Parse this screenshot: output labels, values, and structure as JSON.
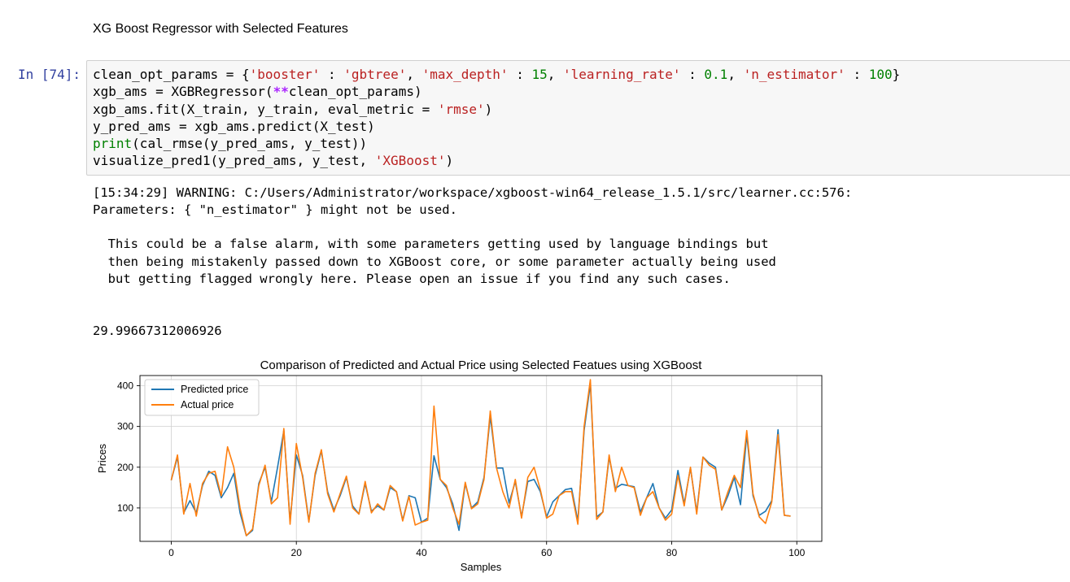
{
  "markdown": {
    "heading": "XG Boost Regressor with Selected Features"
  },
  "cell": {
    "prompt": "In [74]:",
    "code": {
      "l1_var": "clean_opt_params = {",
      "l1_k1": "'booster'",
      "l1_sep1": " : ",
      "l1_v1": "'gbtree'",
      "l1_c1": ", ",
      "l1_k2": "'max_depth'",
      "l1_sep2": " : ",
      "l1_v2": "15",
      "l1_c2": ", ",
      "l1_k3": "'learning_rate'",
      "l1_sep3": " : ",
      "l1_v3": "0.1",
      "l1_c3": ", ",
      "l1_k4": "'n_estimator'",
      "l1_sep4": " : ",
      "l1_v4": "100",
      "l1_end": "}",
      "l2_a": "xgb_ams = XGBRegressor(",
      "l2_op": "**",
      "l2_b": "clean_opt_params)",
      "l3_a": "xgb_ams.fit(X_train, y_train, eval_metric = ",
      "l3_s": "'rmse'",
      "l3_b": ")",
      "l4": "y_pred_ams = xgb_ams.predict(X_test)",
      "l5_fn": "print",
      "l5_b": "(cal_rmse(y_pred_ams, y_test))",
      "l6_a": "visualize_pred1(y_pred_ams, y_test, ",
      "l6_s": "'XGBoost'",
      "l6_b": ")"
    }
  },
  "output": {
    "warn1": "[15:34:29] WARNING: C:/Users/Administrator/workspace/xgboost-win64_release_1.5.1/src/learner.cc:576:",
    "warn2": "Parameters: { \"n_estimator\" } might not be used.",
    "warn3": "  This could be a false alarm, with some parameters getting used by language bindings but",
    "warn4": "  then being mistakenly passed down to XGBoost core, or some parameter actually being used",
    "warn5": "  but getting flagged wrongly here. Please open an issue if you find any such cases.",
    "rmse": "29.99667312006926"
  },
  "chart_data": {
    "type": "line",
    "title": "Comparison of Predicted and Actual Price using Selected Featues using XGBoost",
    "xlabel": "Samples",
    "ylabel": "Prices",
    "xlim": [
      -5,
      104
    ],
    "ylim": [
      18,
      425
    ],
    "xticks": [
      0,
      20,
      40,
      60,
      80,
      100
    ],
    "yticks": [
      100,
      200,
      300,
      400
    ],
    "grid": true,
    "legend": "top-left",
    "series": [
      {
        "name": "Predicted price",
        "color": "#1f77b4",
        "values": [
          168,
          225,
          88,
          118,
          88,
          155,
          190,
          180,
          125,
          150,
          185,
          88,
          32,
          45,
          160,
          200,
          115,
          200,
          290,
          68,
          230,
          180,
          68,
          180,
          240,
          140,
          95,
          130,
          175,
          105,
          85,
          160,
          92,
          105,
          95,
          150,
          140,
          70,
          130,
          125,
          65,
          75,
          228,
          170,
          150,
          110,
          45,
          160,
          100,
          115,
          175,
          325,
          198,
          198,
          112,
          165,
          78,
          165,
          170,
          140,
          78,
          115,
          130,
          145,
          148,
          68,
          290,
          405,
          78,
          90,
          225,
          148,
          158,
          155,
          152,
          90,
          125,
          160,
          100,
          75,
          95,
          192,
          110,
          198,
          90,
          225,
          210,
          200,
          95,
          130,
          175,
          108,
          280,
          130,
          82,
          92,
          118,
          292,
          82,
          80
        ]
      },
      {
        "name": "Actual price",
        "color": "#ff7f0e",
        "values": [
          168,
          230,
          85,
          160,
          80,
          160,
          185,
          190,
          130,
          250,
          200,
          100,
          32,
          48,
          155,
          205,
          110,
          125,
          295,
          60,
          258,
          175,
          65,
          185,
          243,
          135,
          90,
          135,
          178,
          100,
          85,
          165,
          88,
          110,
          95,
          155,
          140,
          68,
          128,
          58,
          65,
          70,
          350,
          170,
          155,
          100,
          60,
          163,
          98,
          110,
          170,
          338,
          198,
          140,
          100,
          170,
          75,
          175,
          200,
          145,
          75,
          85,
          130,
          140,
          140,
          60,
          300,
          415,
          72,
          90,
          230,
          140,
          200,
          155,
          150,
          82,
          125,
          140,
          100,
          70,
          85,
          180,
          105,
          200,
          85,
          225,
          205,
          195,
          95,
          140,
          180,
          150,
          290,
          135,
          78,
          62,
          115,
          280,
          82,
          80
        ]
      }
    ]
  }
}
